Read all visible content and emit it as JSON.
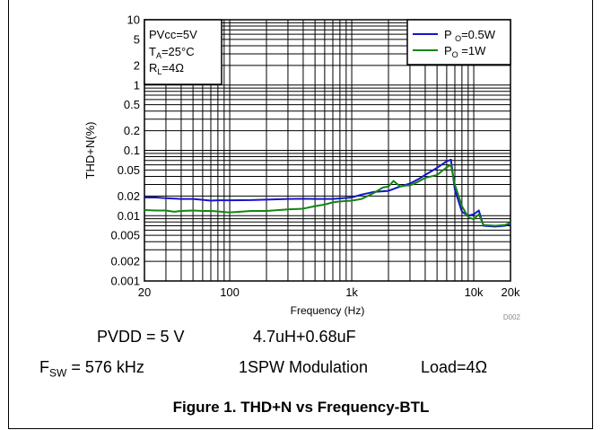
{
  "chart_data": {
    "type": "line",
    "xscale": "log",
    "yscale": "log",
    "xlim": [
      20,
      20000
    ],
    "ylim": [
      0.001,
      10
    ],
    "xlabel": "Frequency (Hz)",
    "ylabel": "THD+N(%)",
    "x_ticks": [
      "20",
      "100",
      "1k",
      "10k",
      "20k"
    ],
    "x_tick_values": [
      20,
      100,
      1000,
      10000,
      20000
    ],
    "y_ticks": [
      "10",
      "5",
      "2",
      "1",
      "0.5",
      "0.2",
      "0.1",
      "0.05",
      "0.02",
      "0.01",
      "0.005",
      "0.002",
      "0.001"
    ],
    "y_tick_values": [
      10,
      5,
      2,
      1,
      0.5,
      0.2,
      0.1,
      0.05,
      0.02,
      0.01,
      0.005,
      0.002,
      0.001
    ],
    "grid": true,
    "conditions": [
      "PVcc=5V",
      "TA=25°C",
      "RL=4Ω"
    ],
    "corner_label": "D002",
    "legend_position": "top-right",
    "series": [
      {
        "name": "P O=0.5W",
        "color": "#1515c8",
        "x": [
          20,
          25,
          30,
          40,
          50,
          60,
          70,
          80,
          100,
          150,
          200,
          300,
          400,
          500,
          700,
          1000,
          1200,
          1500,
          2000,
          2500,
          3000,
          3500,
          4000,
          5000,
          6000,
          6500,
          7000,
          8000,
          9000,
          10000,
          11000,
          12000,
          15000,
          18000,
          20000
        ],
        "y": [
          0.019,
          0.019,
          0.0185,
          0.018,
          0.018,
          0.0175,
          0.017,
          0.0172,
          0.0172,
          0.0173,
          0.0176,
          0.018,
          0.0182,
          0.018,
          0.018,
          0.019,
          0.021,
          0.023,
          0.024,
          0.028,
          0.031,
          0.036,
          0.042,
          0.054,
          0.068,
          0.072,
          0.025,
          0.0115,
          0.01,
          0.0105,
          0.012,
          0.007,
          0.0068,
          0.007,
          0.0075
        ]
      },
      {
        "name": "PO =1W",
        "color": "#148514",
        "x": [
          20,
          25,
          30,
          35,
          40,
          50,
          60,
          70,
          80,
          100,
          150,
          200,
          300,
          400,
          500,
          600,
          700,
          800,
          1000,
          1200,
          1500,
          1800,
          2000,
          2200,
          2500,
          2800,
          3000,
          3500,
          4000,
          5000,
          6000,
          6500,
          7000,
          8000,
          9000,
          10000,
          11000,
          12000,
          15000,
          18000,
          20000
        ],
        "y": [
          0.0122,
          0.012,
          0.012,
          0.0115,
          0.0118,
          0.012,
          0.0118,
          0.0118,
          0.0116,
          0.0112,
          0.0118,
          0.0118,
          0.0125,
          0.0128,
          0.014,
          0.0148,
          0.016,
          0.0165,
          0.017,
          0.018,
          0.022,
          0.027,
          0.028,
          0.034,
          0.028,
          0.029,
          0.029,
          0.033,
          0.038,
          0.042,
          0.055,
          0.06,
          0.03,
          0.014,
          0.0095,
          0.0088,
          0.0105,
          0.0072,
          0.007,
          0.0072,
          0.0078
        ]
      }
    ]
  },
  "captions": {
    "pvdd": "PVDD = 5 V",
    "filter": "4.7uH+0.68uF",
    "fsw_prefix": "F",
    "fsw_sub": "SW",
    "fsw_value": " = 576 kHz",
    "modulation": "1SPW Modulation",
    "load": "Load=4Ω",
    "figure_title": "Figure 1. THD+N vs Frequency-BTL"
  }
}
